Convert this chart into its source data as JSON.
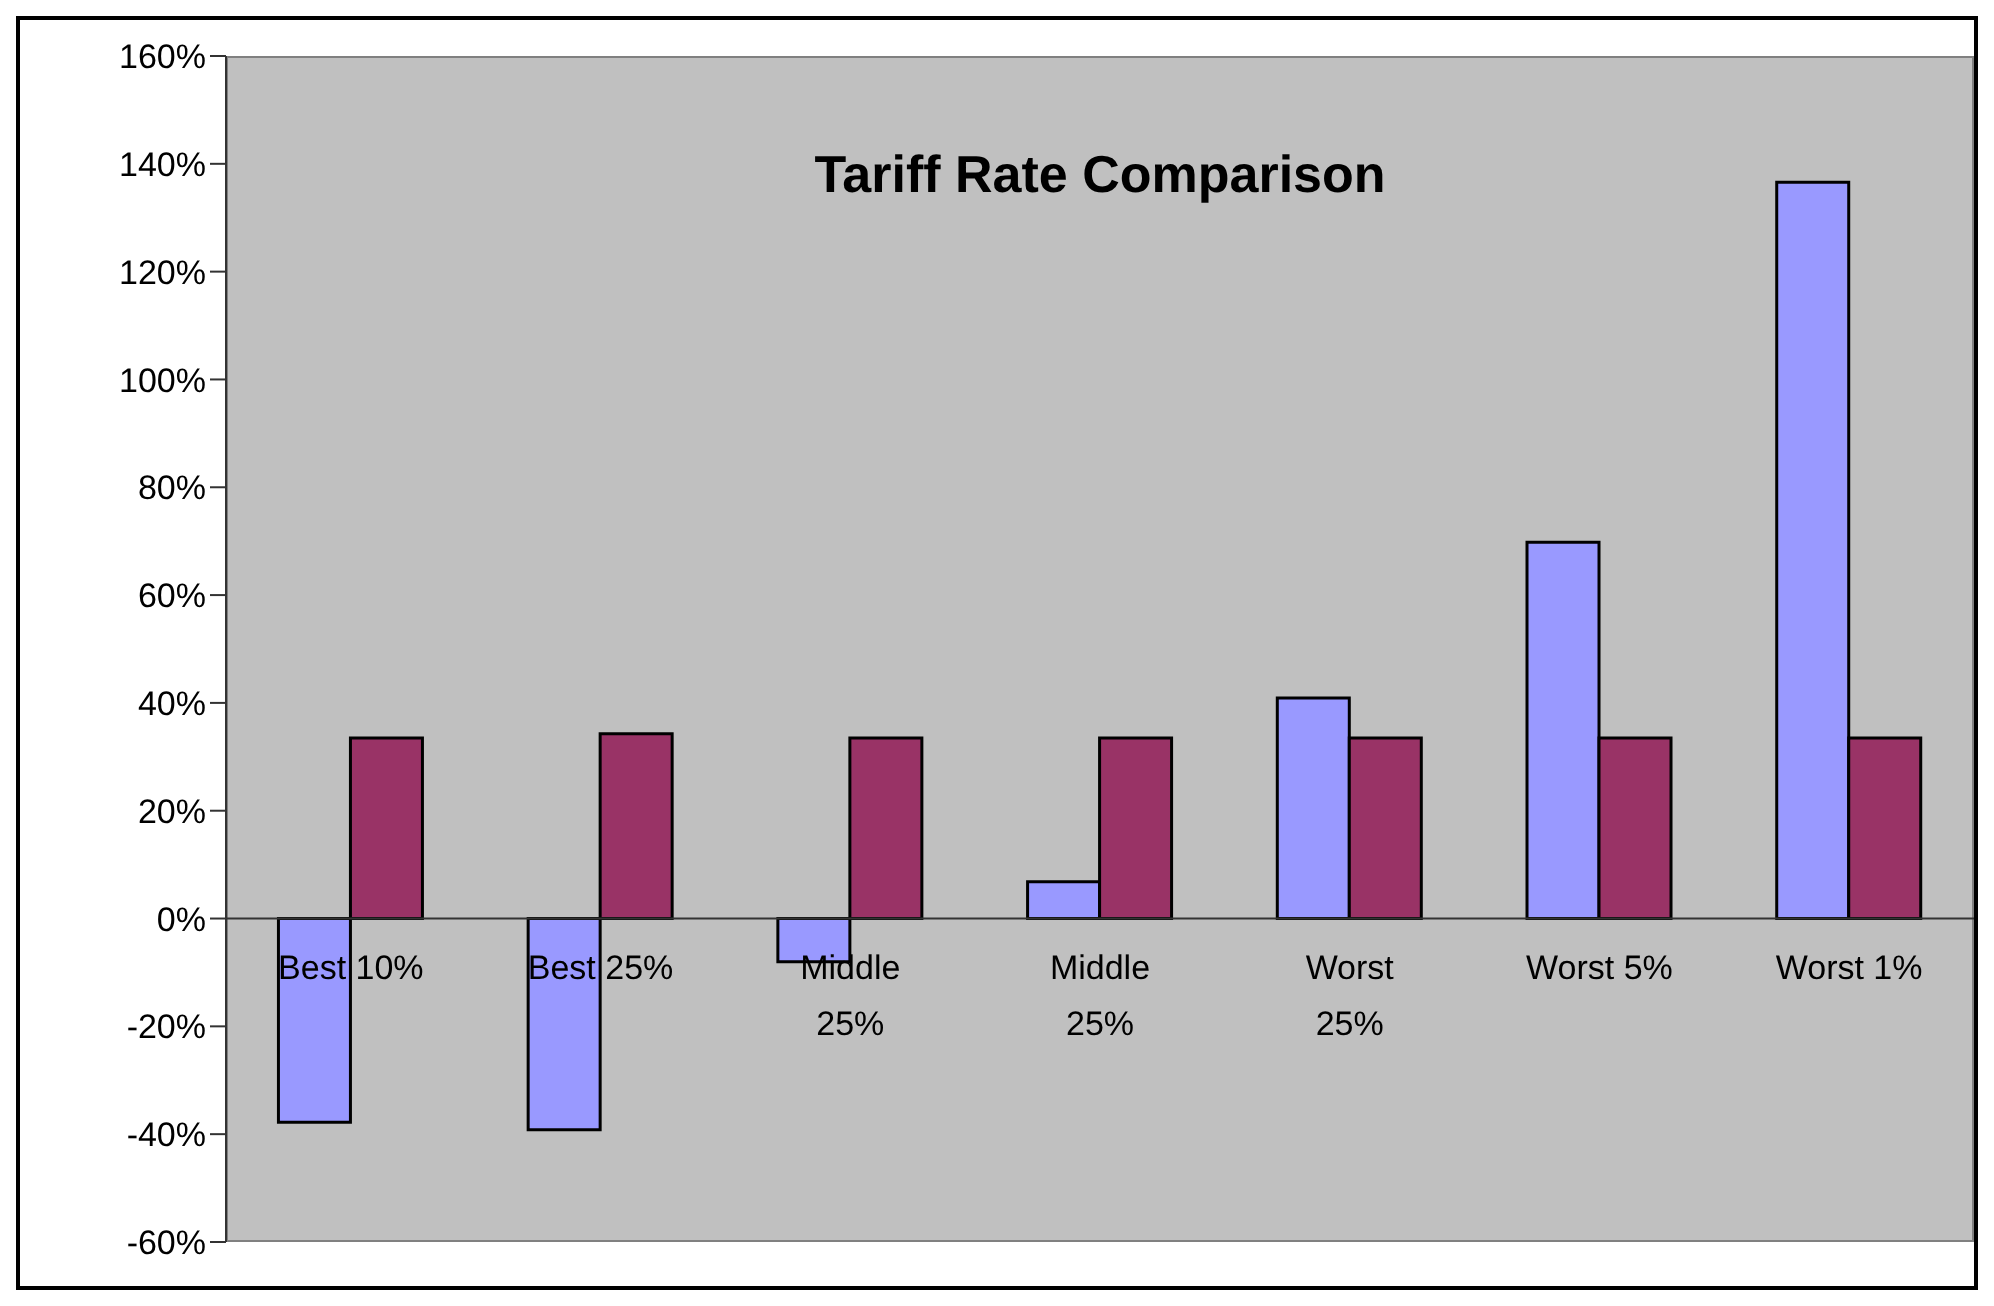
{
  "chart_data": {
    "type": "bar",
    "title": "Tariff Rate Comparison",
    "categories": [
      "Best 10%",
      "Best 25%",
      "Middle 25%",
      "Middle 25%",
      "Worst 25%",
      "Worst 5%",
      "Worst 1%"
    ],
    "series": [
      {
        "color": "#9999ff",
        "values": [
          -37.8,
          -39.2,
          -8.0,
          6.8,
          40.9,
          69.8,
          136.6
        ]
      },
      {
        "color": "#993366",
        "values": [
          33.5,
          34.3,
          33.5,
          33.5,
          33.5,
          33.5,
          33.5
        ]
      }
    ],
    "ylim": [
      -60,
      160
    ],
    "yticks": [
      {
        "value": -60,
        "label": "-60%"
      },
      {
        "value": -40,
        "label": "-40%"
      },
      {
        "value": -20,
        "label": "-20%"
      },
      {
        "value": 0,
        "label": "0%"
      },
      {
        "value": 20,
        "label": "20%"
      },
      {
        "value": 40,
        "label": "40%"
      },
      {
        "value": 60,
        "label": "60%"
      },
      {
        "value": 80,
        "label": "80%"
      },
      {
        "value": 100,
        "label": "100%"
      },
      {
        "value": 120,
        "label": "120%"
      },
      {
        "value": 140,
        "label": "140%"
      },
      {
        "value": 160,
        "label": "160%"
      }
    ],
    "grid": false,
    "legend": false
  }
}
